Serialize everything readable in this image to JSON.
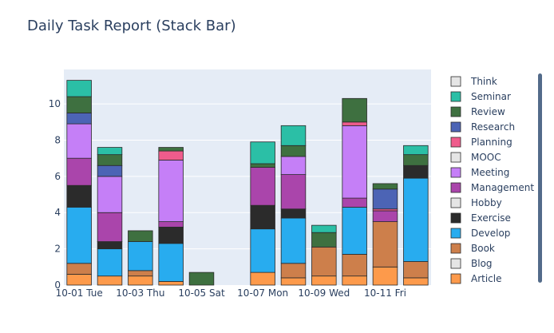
{
  "chart_data": {
    "type": "bar",
    "barmode": "stack",
    "title": "Daily Task Report (Stack Bar)",
    "xlabel": "",
    "ylabel": "",
    "ylim": [
      0,
      11.9
    ],
    "yticks": [
      0,
      2,
      4,
      6,
      8,
      10
    ],
    "grid": true,
    "legend_position": "right",
    "x": [
      "10-01",
      "10-02",
      "10-03",
      "10-04",
      "10-05",
      "10-06",
      "10-07",
      "10-08",
      "10-09",
      "10-10",
      "10-11",
      "10-12"
    ],
    "x_tick_labels": [
      {
        "x": "10-01",
        "label": "10-01 Tue"
      },
      {
        "x": "10-03",
        "label": "10-03 Thu"
      },
      {
        "x": "10-05",
        "label": "10-05 Sat"
      },
      {
        "x": "10-07",
        "label": "10-07 Mon"
      },
      {
        "x": "10-09",
        "label": "10-09 Wed"
      },
      {
        "x": "10-11",
        "label": "10-11 Fri"
      }
    ],
    "series": [
      {
        "name": "Article",
        "color": "#fd9a4b",
        "values": [
          0.6,
          0.5,
          0.5,
          0.2,
          0,
          0,
          0.7,
          0.4,
          0.5,
          0.5,
          1.0,
          0.4
        ]
      },
      {
        "name": "Blog",
        "color": "#e5e5e5",
        "values": [
          0,
          0,
          0,
          0,
          0,
          0,
          0,
          0,
          0,
          0,
          0,
          0
        ]
      },
      {
        "name": "Book",
        "color": "#cd7f4b",
        "values": [
          0.6,
          0,
          0.3,
          0,
          0,
          0,
          0,
          0.8,
          1.6,
          1.2,
          2.5,
          0.9
        ]
      },
      {
        "name": "Develop",
        "color": "#28acef",
        "values": [
          3.1,
          1.5,
          1.6,
          2.1,
          0,
          0,
          2.4,
          2.5,
          0,
          2.6,
          0,
          4.6
        ]
      },
      {
        "name": "Exercise",
        "color": "#2b2b2b",
        "values": [
          1.2,
          0.4,
          0,
          0.9,
          0,
          0,
          1.3,
          0.5,
          0,
          0,
          0,
          0.7
        ]
      },
      {
        "name": "Hobby",
        "color": "#e5e5e5",
        "values": [
          0,
          0,
          0,
          0,
          0,
          0,
          0,
          0,
          0,
          0,
          0,
          0
        ]
      },
      {
        "name": "Management",
        "color": "#aa45ab",
        "values": [
          1.5,
          1.6,
          0,
          0.3,
          0,
          0,
          2.1,
          1.9,
          0,
          0.5,
          0.6,
          0
        ]
      },
      {
        "name": "Meeting",
        "color": "#c57ff7",
        "values": [
          1.9,
          2.0,
          0,
          3.4,
          0,
          0,
          0,
          1.0,
          0,
          4.0,
          0,
          0
        ]
      },
      {
        "name": "MOOC",
        "color": "#e5e5e5",
        "values": [
          0,
          0,
          0,
          0,
          0,
          0,
          0,
          0,
          0,
          0,
          0,
          0
        ]
      },
      {
        "name": "Planning",
        "color": "#ef5c8c",
        "values": [
          0,
          0,
          0,
          0.5,
          0,
          0,
          0,
          0,
          0,
          0.2,
          0.1,
          0
        ]
      },
      {
        "name": "Research",
        "color": "#4c64b5",
        "values": [
          0.6,
          0.6,
          0,
          0,
          0,
          0,
          0,
          0,
          0,
          0,
          1.1,
          0
        ]
      },
      {
        "name": "Review",
        "color": "#3e7040",
        "values": [
          0.9,
          0.6,
          0.6,
          0.2,
          0.7,
          0,
          0.2,
          0.6,
          0.8,
          1.3,
          0.3,
          0.6
        ]
      },
      {
        "name": "Seminar",
        "color": "#2bbfa6",
        "values": [
          0.9,
          0.4,
          0,
          0,
          0,
          0,
          1.2,
          1.1,
          0.4,
          0,
          0,
          0.5
        ]
      },
      {
        "name": "Think",
        "color": "#e5e5e5",
        "values": [
          0,
          0,
          0,
          0,
          0,
          0,
          0,
          0,
          0,
          0,
          0,
          0
        ]
      }
    ]
  }
}
